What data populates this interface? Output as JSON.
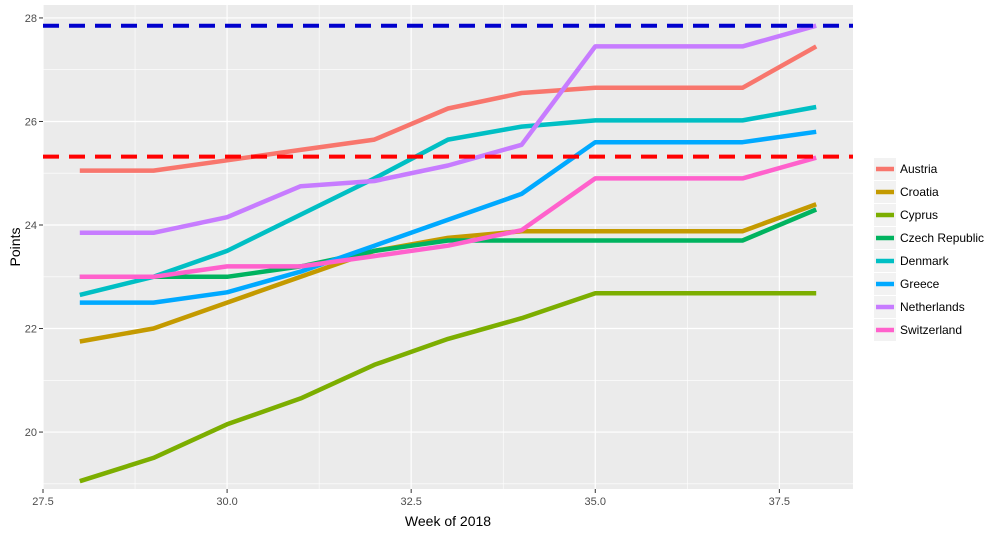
{
  "chart_data": {
    "type": "line",
    "title": "",
    "xlabel": "Week of 2018",
    "ylabel": "Points",
    "xlim": [
      27.5,
      38.5
    ],
    "ylim": [
      18.9,
      28.25
    ],
    "x_ticks": [
      27.5,
      30.0,
      32.5,
      35.0,
      37.5
    ],
    "x_tick_labels": [
      "27.5",
      "30.0",
      "32.5",
      "35.0",
      "37.5"
    ],
    "y_ticks": [
      20,
      22,
      24,
      26,
      28
    ],
    "y_tick_labels": [
      "20",
      "22",
      "24",
      "26",
      "28"
    ],
    "grid": true,
    "legend_position": "right",
    "x": [
      28,
      29,
      30,
      31,
      32,
      33,
      34,
      35,
      36,
      37,
      38
    ],
    "series": [
      {
        "name": "Austria",
        "color": "#F8766D",
        "values": [
          25.05,
          25.05,
          25.25,
          25.45,
          25.65,
          26.25,
          26.55,
          26.65,
          26.65,
          26.65,
          27.45
        ]
      },
      {
        "name": "Croatia",
        "color": "#C49A00",
        "values": [
          21.75,
          22.0,
          22.5,
          23.0,
          23.5,
          23.75,
          23.88,
          23.88,
          23.88,
          23.88,
          24.4
        ]
      },
      {
        "name": "Cyprus",
        "color": "#7CAE00",
        "values": [
          19.05,
          19.5,
          20.15,
          20.65,
          21.3,
          21.8,
          22.2,
          22.68,
          22.68,
          22.68,
          22.68
        ]
      },
      {
        "name": "Czech Republic",
        "color": "#00B35F",
        "values": [
          23.0,
          23.0,
          23.0,
          23.2,
          23.5,
          23.7,
          23.7,
          23.7,
          23.7,
          23.7,
          24.3
        ]
      },
      {
        "name": "Denmark",
        "color": "#00BFC4",
        "values": [
          22.65,
          23.0,
          23.5,
          24.2,
          24.9,
          25.65,
          25.9,
          26.02,
          26.02,
          26.02,
          26.28
        ]
      },
      {
        "name": "Greece",
        "color": "#00A9FF",
        "values": [
          22.5,
          22.5,
          22.7,
          23.1,
          23.6,
          24.1,
          24.6,
          25.6,
          25.6,
          25.6,
          25.8
        ]
      },
      {
        "name": "Netherlands",
        "color": "#C77CFF",
        "values": [
          23.85,
          23.85,
          24.15,
          24.75,
          24.85,
          25.15,
          25.55,
          27.45,
          27.45,
          27.45,
          27.85
        ]
      },
      {
        "name": "Switzerland",
        "color": "#FF61CC",
        "values": [
          23.0,
          23.0,
          23.2,
          23.2,
          23.4,
          23.6,
          23.9,
          24.9,
          24.9,
          24.9,
          25.3
        ]
      }
    ],
    "reference_lines": [
      {
        "y": 27.85,
        "color": "#0000CD",
        "style": "dashed"
      },
      {
        "y": 25.32,
        "color": "#FF0000",
        "style": "dashed"
      }
    ]
  }
}
